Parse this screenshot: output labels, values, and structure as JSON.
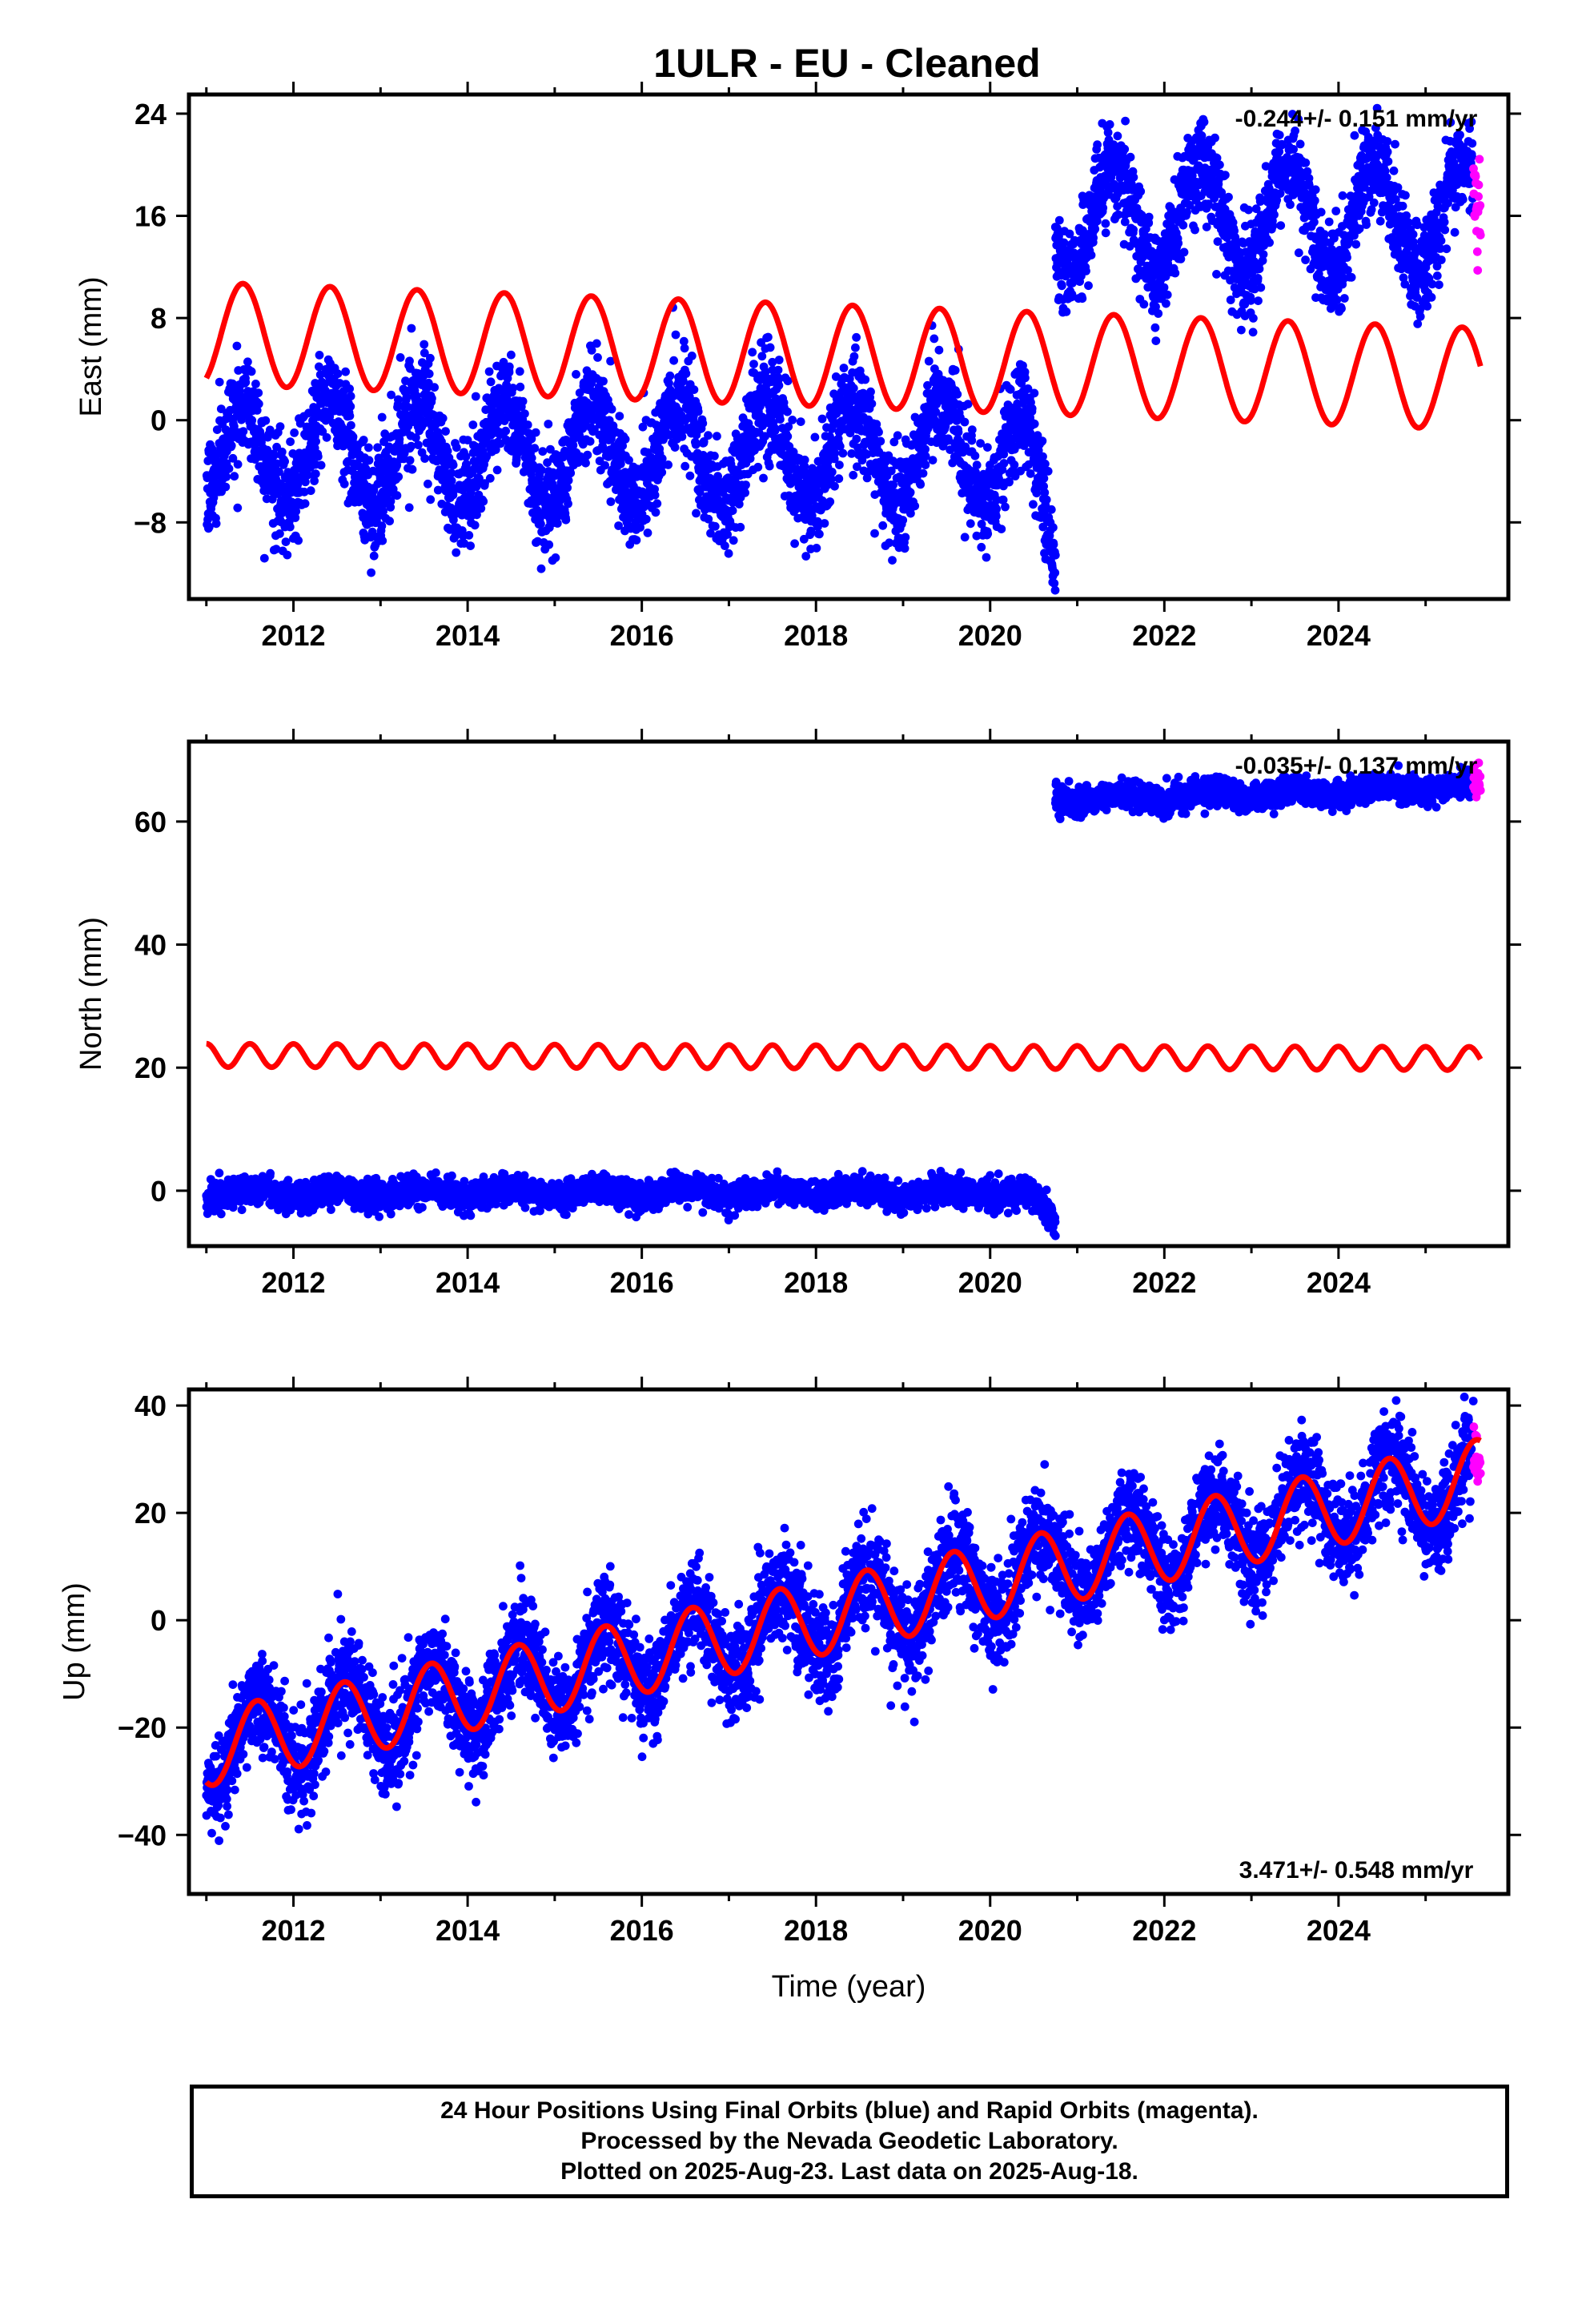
{
  "title": "1ULR  - EU - Cleaned",
  "footer": {
    "line1": "24 Hour Positions Using Final Orbits (blue) and Rapid Orbits (magenta).",
    "line2": "Processed by the Nevada Geodetic Laboratory.",
    "line3": "Plotted on 2025-Aug-23. Last data on 2025-Aug-18."
  },
  "colors": {
    "final": "#0000ff",
    "rapid": "#ff00ff",
    "model": "#ff0000",
    "axes": "#000000"
  },
  "chart_data": [
    {
      "type": "scatter",
      "ylabel": "East (mm)",
      "xlabel": "",
      "xlim": [
        2010.8,
        2025.95
      ],
      "ylim": [
        -14,
        25.5
      ],
      "xticks": [
        2012,
        2014,
        2016,
        2018,
        2020,
        2022,
        2024
      ],
      "yticks": [
        -8,
        0,
        8,
        16,
        24
      ],
      "ytick_labels": [
        "−8",
        "0",
        "8",
        "16",
        "24"
      ],
      "rate_text": "-0.244+/- 0.151 mm/yr",
      "rate_position": "top-right",
      "series": [
        {
          "name": "",
          "role": "final",
          "segments": [
            {
              "t_start": 2011.0,
              "t_end": 2020.75,
              "offset": -2.5,
              "trend": 0.0,
              "amplitude": 4.0,
              "peak_phase": 0.42,
              "scatter": 2.0,
              "ramp_start": 2020.35,
              "ramp_slope": -18
            },
            {
              "t_start": 2020.75,
              "t_end": 2025.55,
              "offset": 15.8,
              "trend": 0.0,
              "amplitude": 4.2,
              "peak_phase": 0.42,
              "scatter": 1.8
            }
          ]
        },
        {
          "name": "",
          "role": "rapid",
          "segments": [
            {
              "t_start": 2025.55,
              "t_end": 2025.63,
              "offset": 17.5,
              "scatter": 2.5
            }
          ]
        },
        {
          "name": "",
          "role": "model",
          "type": "line",
          "t_start": 2011.0,
          "t_end": 2025.63,
          "offset": 6.8,
          "offset_ref_year": 2011.0,
          "trend": -0.244,
          "amplitude": 4.0,
          "peak_phase": 0.42
        }
      ]
    },
    {
      "type": "scatter",
      "ylabel": "North (mm)",
      "xlabel": "",
      "xlim": [
        2010.8,
        2025.95
      ],
      "ylim": [
        -9,
        73
      ],
      "xticks": [
        2012,
        2014,
        2016,
        2018,
        2020,
        2022,
        2024
      ],
      "yticks": [
        0,
        20,
        40,
        60
      ],
      "ytick_labels": [
        "0",
        "20",
        "40",
        "60"
      ],
      "rate_text": "-0.035+/- 0.137 mm/yr",
      "rate_position": "top-right",
      "series": [
        {
          "name": "",
          "role": "final",
          "segments": [
            {
              "t_start": 2011.0,
              "t_end": 2020.75,
              "offset": -0.3,
              "trend": 0.0,
              "amplitude": 0.7,
              "peak_phase": 0.5,
              "scatter": 1.1,
              "ramp_start": 2020.4,
              "ramp_slope": -12
            },
            {
              "t_start": 2020.75,
              "t_end": 2025.55,
              "offset": 63.5,
              "trend": 0.45,
              "amplitude": 0.6,
              "peak_phase": 0.5,
              "scatter": 1.1
            }
          ]
        },
        {
          "name": "",
          "role": "rapid",
          "segments": [
            {
              "t_start": 2025.55,
              "t_end": 2025.63,
              "offset": 66.0,
              "scatter": 1.6
            }
          ]
        },
        {
          "name": "",
          "role": "model",
          "type": "line",
          "t_start": 2011.0,
          "t_end": 2025.63,
          "offset": 22.0,
          "offset_ref_year": 2011.0,
          "trend": -0.035,
          "amplitude": 1.9,
          "peak_phase": 0.0,
          "harmonic": 2
        }
      ]
    },
    {
      "type": "scatter",
      "ylabel": "Up (mm)",
      "xlabel": "Time (year)",
      "xlim": [
        2010.8,
        2025.95
      ],
      "ylim": [
        -51,
        43
      ],
      "xticks": [
        2012,
        2014,
        2016,
        2018,
        2020,
        2022,
        2024
      ],
      "yticks": [
        -40,
        -20,
        0,
        20,
        40
      ],
      "ytick_labels": [
        "−40",
        "−20",
        "0",
        "20",
        "40"
      ],
      "rate_text": "3.471+/- 0.548 mm/yr",
      "rate_position": "bottom-right",
      "series": [
        {
          "name": "",
          "role": "final",
          "segments": [
            {
              "t_start": 2011.0,
              "t_end": 2025.55,
              "offset": -24.0,
              "trend": 3.471,
              "amplitude": 7.0,
              "peak_phase": 0.58,
              "scatter": 4.5
            }
          ]
        },
        {
          "name": "",
          "role": "rapid",
          "segments": [
            {
              "t_start": 2025.55,
              "t_end": 2025.63,
              "offset": 29.5,
              "scatter": 2.5
            }
          ]
        },
        {
          "name": "",
          "role": "model",
          "type": "line",
          "t_start": 2011.0,
          "t_end": 2025.63,
          "offset": -24.0,
          "offset_ref_year": 2011.0,
          "trend": 3.471,
          "amplitude": 7.0,
          "peak_phase": 0.58
        }
      ]
    }
  ]
}
